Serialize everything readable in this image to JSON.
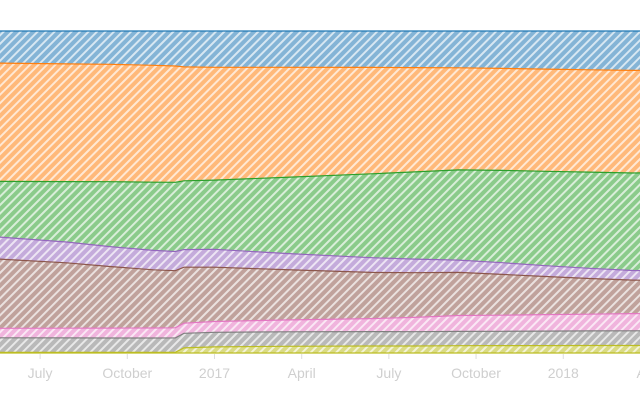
{
  "chart_data": {
    "type": "area",
    "stacked": "expand",
    "title": "",
    "xlabel": "",
    "ylabel": "",
    "x_ticks": [
      {
        "label": "July",
        "t": 0.2
      },
      {
        "label": "October",
        "t": 1.2
      },
      {
        "label": "2017",
        "t": 2.2
      },
      {
        "label": "April",
        "t": 3.2
      },
      {
        "label": "July",
        "t": 4.2
      },
      {
        "label": "October",
        "t": 5.2
      },
      {
        "label": "2018",
        "t": 6.2
      },
      {
        "label": "April",
        "t": 7.2
      }
    ],
    "x": [
      -0.26,
      0.5,
      1.0,
      1.5,
      1.75,
      1.85,
      2.2,
      3.0,
      4.0,
      4.5,
      5.0,
      5.5,
      6.0,
      6.5,
      7.0,
      7.08
    ],
    "series": [
      {
        "color": "#1f77b4",
        "values": [
          9.5,
          9.8,
          10.0,
          10.3,
          10.4,
          10.6,
          10.7,
          10.8,
          10.9,
          11.0,
          11.1,
          11.2,
          11.3,
          11.4,
          11.5,
          11.5
        ]
      },
      {
        "color": "#ff7f0e",
        "values": [
          35.0,
          35.1,
          35.3,
          35.1,
          34.6,
          33.6,
          33.3,
          32.7,
          31.8,
          31.3,
          30.8,
          30.5,
          30.3,
          30.1,
          30.0,
          30.0
        ]
      },
      {
        "color": "#2ca02c",
        "values": [
          16.5,
          18.0,
          19.5,
          20.5,
          20.6,
          20.3,
          20.4,
          22.6,
          25.1,
          26.2,
          27.2,
          27.6,
          28.0,
          28.3,
          28.5,
          28.6
        ]
      },
      {
        "color": "#9467bd",
        "values": [
          6.5,
          6.2,
          6.0,
          5.8,
          5.7,
          5.2,
          5.3,
          4.8,
          4.4,
          4.1,
          3.7,
          3.5,
          3.2,
          3.0,
          2.8,
          2.8
        ]
      },
      {
        "color": "#8c564b",
        "values": [
          20.5,
          19.5,
          18.5,
          17.5,
          17.0,
          16.5,
          16.0,
          15.0,
          13.8,
          13.4,
          13.0,
          12.2,
          11.3,
          10.5,
          9.8,
          9.8
        ]
      },
      {
        "color": "#e377c2",
        "values": [
          2.8,
          2.9,
          3.0,
          3.0,
          3.0,
          3.0,
          3.2,
          3.5,
          3.9,
          4.3,
          4.8,
          4.8,
          4.9,
          4.9,
          5.0,
          5.0
        ]
      },
      {
        "color": "#7f7f7f",
        "values": [
          4.3,
          4.3,
          4.3,
          4.3,
          4.3,
          4.3,
          4.3,
          4.3,
          4.3,
          4.3,
          4.3,
          4.3,
          4.3,
          4.3,
          4.3,
          4.3
        ]
      },
      {
        "color": "#bcbd22",
        "values": [
          0.2,
          0.2,
          0.2,
          0.2,
          0.2,
          1.5,
          1.8,
          2.0,
          2.1,
          2.1,
          2.2,
          2.2,
          2.2,
          2.2,
          2.2,
          2.2
        ]
      }
    ],
    "grid": false,
    "legend": "none"
  }
}
